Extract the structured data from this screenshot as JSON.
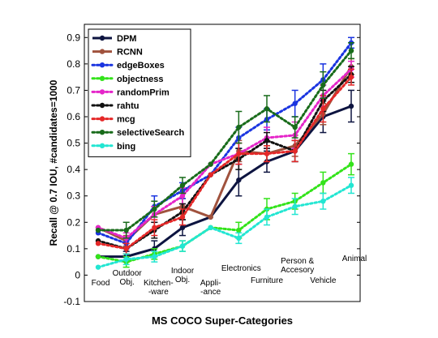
{
  "chart_data": {
    "type": "line",
    "xlabel": "MS COCO Super-Categories",
    "ylabel": "Recall @ 0.7 IOU, #candidates=1000",
    "ylim": [
      -0.1,
      0.95
    ],
    "yticks": [
      -0.1,
      0,
      0.1,
      0.2,
      0.3,
      0.4,
      0.5,
      0.6,
      0.7,
      0.8,
      0.9
    ],
    "ytick_labels": [
      "-0.1",
      "0",
      "0.1",
      "0.2",
      "0.3",
      "0.4",
      "0.5",
      "0.6",
      "0.7",
      "0.8",
      "0.9"
    ],
    "categories": [
      [
        "Food"
      ],
      [
        "Outdoor",
        "Obj."
      ],
      [
        "Kitchen-",
        "-ware"
      ],
      [
        "Indoor",
        "Obj."
      ],
      [
        "Appli-",
        "-ance"
      ],
      [
        "Electronics"
      ],
      [
        "Furniture"
      ],
      [
        "Person &",
        "Accesory"
      ],
      [
        "Vehicle"
      ],
      [
        "Animal"
      ]
    ],
    "legend_position": "top-left",
    "grid": false,
    "series": [
      {
        "name": "DPM",
        "color": "#0d1440",
        "dash": "solid",
        "values": [
          0.07,
          0.07,
          0.1,
          0.18,
          0.22,
          0.36,
          0.43,
          0.47,
          0.6,
          0.64
        ],
        "err": [
          0.0,
          0.02,
          0.03,
          0.03,
          0.0,
          0.06,
          0.04,
          0.04,
          0.06,
          0.06
        ]
      },
      {
        "name": "RCNN",
        "color": "#a0523d",
        "dash": "solid",
        "values": [
          0.18,
          0.13,
          0.23,
          0.26,
          0.22,
          0.47,
          0.46,
          0.49,
          0.61,
          0.79
        ],
        "err": [
          0.0,
          0.02,
          0.03,
          0.03,
          0.0,
          0.04,
          0.03,
          0.04,
          0.04,
          0.03
        ]
      },
      {
        "name": "edgeBoxes",
        "color": "#1a34e0",
        "dash": "dotted",
        "values": [
          0.16,
          0.12,
          0.26,
          0.32,
          0.38,
          0.52,
          0.59,
          0.65,
          0.74,
          0.88
        ],
        "err": [
          0.0,
          0.02,
          0.04,
          0.03,
          0.0,
          0.04,
          0.04,
          0.05,
          0.06,
          0.02
        ]
      },
      {
        "name": "objectness",
        "color": "#33e31a",
        "dash": "dotted",
        "values": [
          0.07,
          0.05,
          0.08,
          0.11,
          0.18,
          0.17,
          0.25,
          0.28,
          0.35,
          0.42
        ],
        "err": [
          0.0,
          0.02,
          0.02,
          0.02,
          0.0,
          0.03,
          0.04,
          0.03,
          0.04,
          0.04
        ]
      },
      {
        "name": "randomPrim",
        "color": "#e525c9",
        "dash": "dotted",
        "values": [
          0.18,
          0.14,
          0.23,
          0.3,
          0.42,
          0.46,
          0.52,
          0.53,
          0.68,
          0.78
        ],
        "err": [
          0.0,
          0.02,
          0.03,
          0.03,
          0.0,
          0.04,
          0.04,
          0.05,
          0.04,
          0.03
        ]
      },
      {
        "name": "rahtu",
        "color": "#111111",
        "dash": "dotted",
        "values": [
          0.13,
          0.1,
          0.17,
          0.24,
          0.38,
          0.44,
          0.51,
          0.47,
          0.66,
          0.76
        ],
        "err": [
          0.0,
          0.02,
          0.03,
          0.03,
          0.0,
          0.04,
          0.03,
          0.04,
          0.04,
          0.03
        ]
      },
      {
        "name": "mcg",
        "color": "#e52828",
        "dash": "dotted",
        "values": [
          0.12,
          0.1,
          0.18,
          0.22,
          0.38,
          0.46,
          0.46,
          0.47,
          0.63,
          0.75
        ],
        "err": [
          0.0,
          0.02,
          0.03,
          0.03,
          0.0,
          0.04,
          0.03,
          0.04,
          0.05,
          0.03
        ]
      },
      {
        "name": "selectiveSearch",
        "color": "#186b1a",
        "dash": "dotted",
        "values": [
          0.17,
          0.17,
          0.25,
          0.34,
          0.42,
          0.56,
          0.63,
          0.56,
          0.72,
          0.85
        ],
        "err": [
          0.0,
          0.03,
          0.03,
          0.03,
          0.0,
          0.06,
          0.05,
          0.04,
          0.05,
          0.03
        ]
      },
      {
        "name": "bing",
        "color": "#22e6d2",
        "dash": "dotted",
        "values": [
          0.03,
          0.06,
          0.07,
          0.11,
          0.18,
          0.14,
          0.22,
          0.26,
          0.28,
          0.34
        ],
        "err": [
          0.0,
          0.02,
          0.02,
          0.02,
          0.0,
          0.02,
          0.03,
          0.03,
          0.03,
          0.03
        ]
      }
    ]
  }
}
